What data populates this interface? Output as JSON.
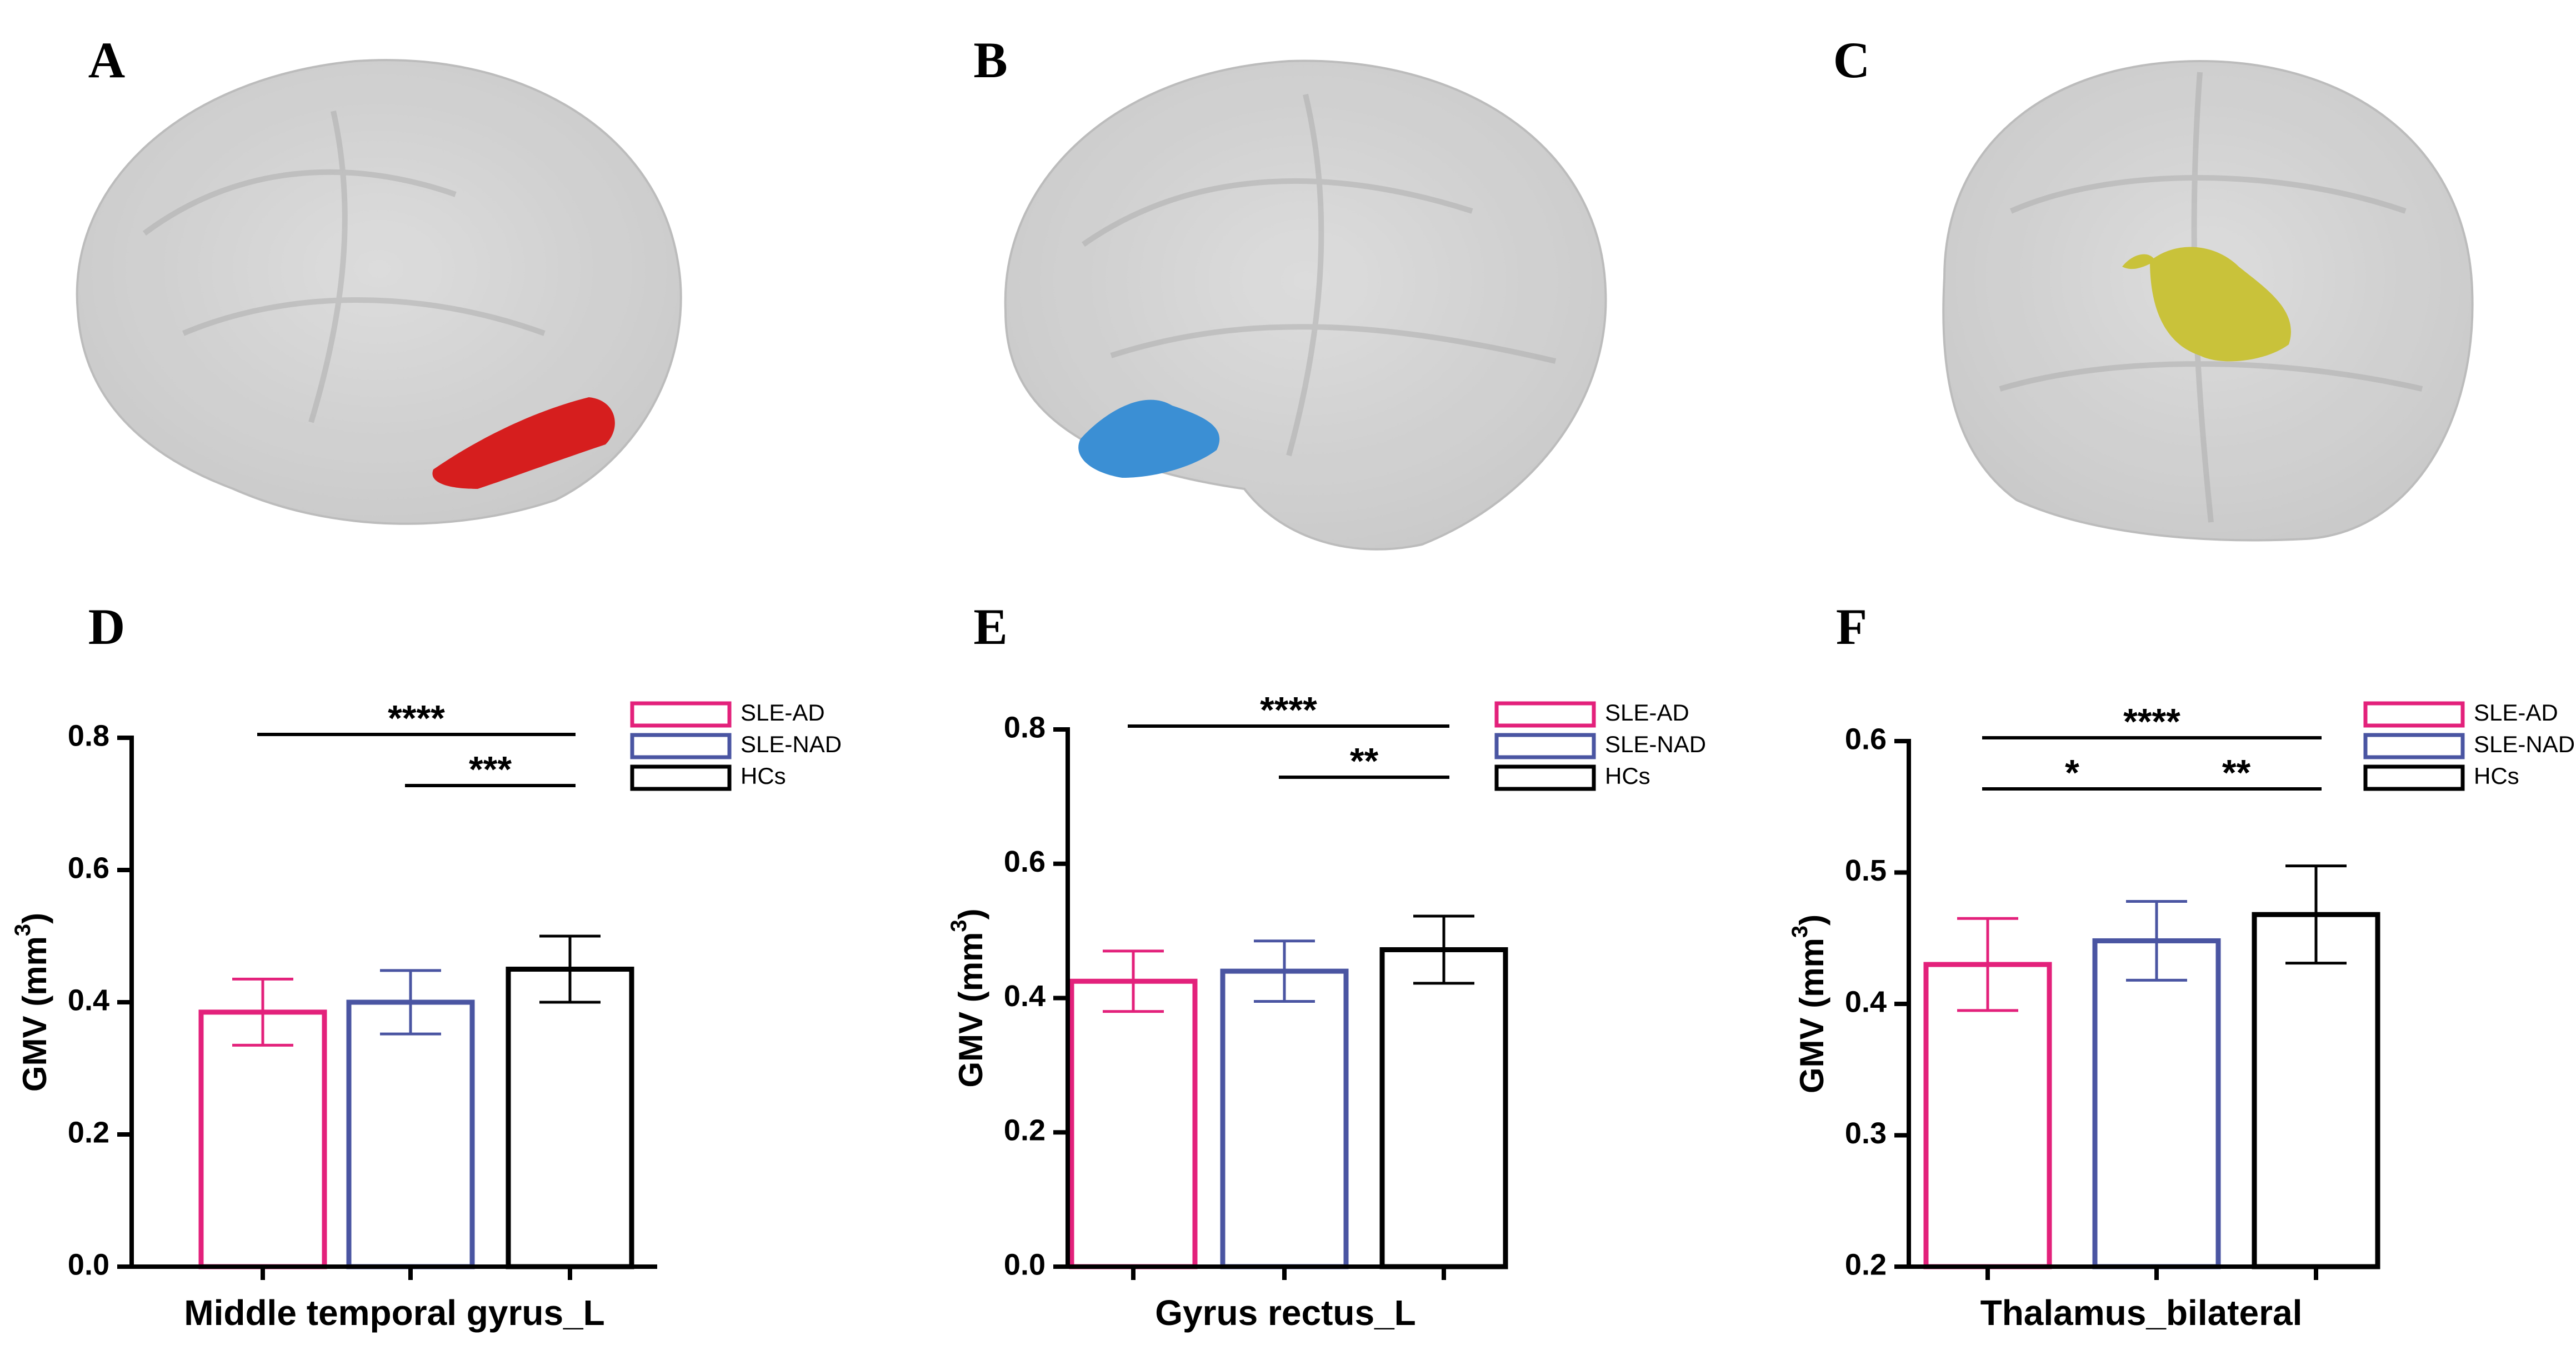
{
  "panel_labels": [
    "A",
    "B",
    "C",
    "D",
    "E",
    "F"
  ],
  "chart_data": [
    {
      "type": "bar",
      "xlabel": "Middle temporal gyrus_L",
      "ylabel": "GMV (mm",
      "ylabel_sup": "3",
      "ylabel_end": ")",
      "categories": [
        null,
        null,
        null
      ],
      "values": [
        0.385,
        0.4,
        0.45
      ],
      "errors": [
        0.05,
        0.048,
        0.05
      ],
      "legend": [
        {
          "name": "SLE-AD",
          "color": "#e3217b"
        },
        {
          "name": "SLE-NAD",
          "color": "#4a55a2"
        },
        {
          "name": "HCs",
          "color": "#000000"
        }
      ],
      "ylim": [
        0,
        0.8
      ],
      "yticks": [
        {
          "value": 0,
          "label": "0.0"
        },
        0.2,
        0.4,
        0.6,
        0.8
      ],
      "annotations": [
        {
          "text": "****",
          "pair": [
            0,
            2
          ]
        },
        {
          "text": "***",
          "pair": [
            1,
            2
          ]
        }
      ]
    },
    {
      "type": "bar",
      "xlabel": "Gyrus rectus_L",
      "ylabel": "GMV (mm",
      "ylabel_sup": "3",
      "ylabel_end": ")",
      "categories": [
        null,
        null,
        null
      ],
      "values": [
        0.425,
        0.44,
        0.472
      ],
      "errors": [
        0.045,
        0.045,
        0.05
      ],
      "legend": [
        {
          "name": "SLE-AD",
          "color": "#e3217b"
        },
        {
          "name": "SLE-NAD",
          "color": "#4a55a2"
        },
        {
          "name": "HCs",
          "color": "#000000"
        }
      ],
      "ylim": [
        0,
        0.8
      ],
      "yticks": [
        {
          "value": 0,
          "label": "0.0"
        },
        0.2,
        0.4,
        0.6,
        0.8
      ],
      "annotations": [
        {
          "text": "****",
          "pair": [
            0,
            2
          ]
        },
        {
          "text": "**",
          "pair": [
            1,
            2
          ]
        }
      ]
    },
    {
      "type": "bar",
      "xlabel": "Thalamus_bilateral",
      "ylabel": "GMV (mm",
      "ylabel_sup": "3",
      "ylabel_end": ")",
      "categories": [
        null,
        null,
        null
      ],
      "values": [
        0.43,
        0.448,
        0.468
      ],
      "errors": [
        0.035,
        0.03,
        0.037
      ],
      "legend": [
        {
          "name": "SLE-AD",
          "color": "#e3217b"
        },
        {
          "name": "SLE-NAD",
          "color": "#4a55a2"
        },
        {
          "name": "HCs",
          "color": "#000000"
        }
      ],
      "ylim": [
        0.2,
        0.6
      ],
      "yticks": [
        0.2,
        0.3,
        0.4,
        0.5,
        0.6
      ],
      "annotations": [
        {
          "text": "****",
          "pair": [
            0,
            2
          ]
        },
        {
          "text": "*",
          "pair": [
            0,
            1
          ]
        },
        {
          "text": "**",
          "pair": [
            1,
            2
          ]
        }
      ]
    }
  ]
}
